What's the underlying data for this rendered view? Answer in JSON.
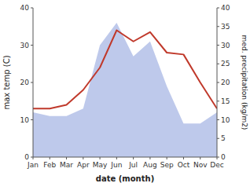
{
  "chart_data": {
    "type": "line",
    "categories": [
      "Jan",
      "Feb",
      "Mar",
      "Apr",
      "May",
      "Jun",
      "Jul",
      "Aug",
      "Sep",
      "Oct",
      "Nov",
      "Dec"
    ],
    "xlabel": "date (month)",
    "ylabel": "max temp (C)",
    "y2label": "med. precipitation (kg/m2)",
    "series": [
      {
        "type": "area",
        "axis": "y2",
        "color": "#b3c0e8",
        "values": [
          12,
          11,
          11,
          13,
          30,
          36,
          27,
          31,
          19,
          9,
          9,
          12
        ]
      },
      {
        "type": "line",
        "color": "#c0392b",
        "values": [
          13,
          13,
          14,
          18,
          24,
          34,
          31,
          33.5,
          28,
          27.5,
          20,
          13
        ]
      }
    ],
    "ylim": [
      0,
      40
    ],
    "yticks": [
      0,
      10,
      20,
      30,
      40
    ],
    "y2lim": [
      0,
      40
    ],
    "y2ticks": [
      0,
      5,
      10,
      15,
      20,
      25,
      30,
      35,
      40
    ],
    "grid": false
  }
}
